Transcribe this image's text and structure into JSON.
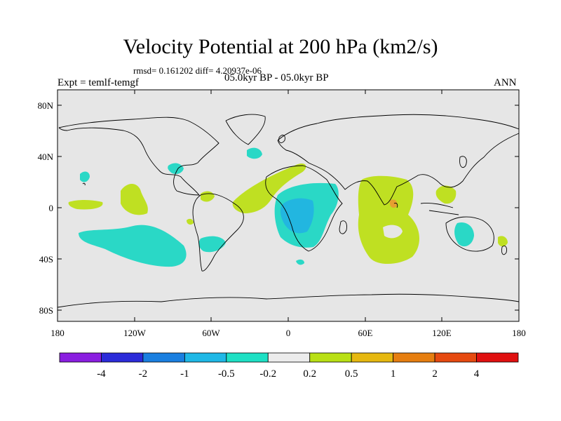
{
  "title": "Velocity Potential at 200 hPa (km2/s)",
  "stats": "rmsd= 0.161202 diff= 4.20937e-06",
  "experiment": "Expt = temlf-temgf",
  "period": "05.0kyr BP - 05.0kyr BP",
  "season": "ANN",
  "lat_ticks": [
    "80N",
    "40N",
    "0",
    "40S",
    "80S"
  ],
  "lon_ticks": [
    "180",
    "120W",
    "60W",
    "0",
    "60E",
    "120E",
    "180"
  ],
  "colorbar": {
    "colors": [
      "#8a1ee0",
      "#2b2bd9",
      "#1a7fe0",
      "#1fb8e6",
      "#1ee0c4",
      "#ececec",
      "#b9e015",
      "#e6b810",
      "#e67e10",
      "#e64a10",
      "#e01010"
    ],
    "labels": [
      "-4",
      "-2",
      "-1",
      "-0.5",
      "-0.2",
      "0.2",
      "0.5",
      "1",
      "2",
      "4"
    ]
  },
  "colors": {
    "background": "#e6e6e6",
    "neg_weak": "#2ad8c6",
    "neg_moderate": "#22b6e0",
    "pos_weak": "#bfe022",
    "pos_moderate": "#e6a030"
  }
}
